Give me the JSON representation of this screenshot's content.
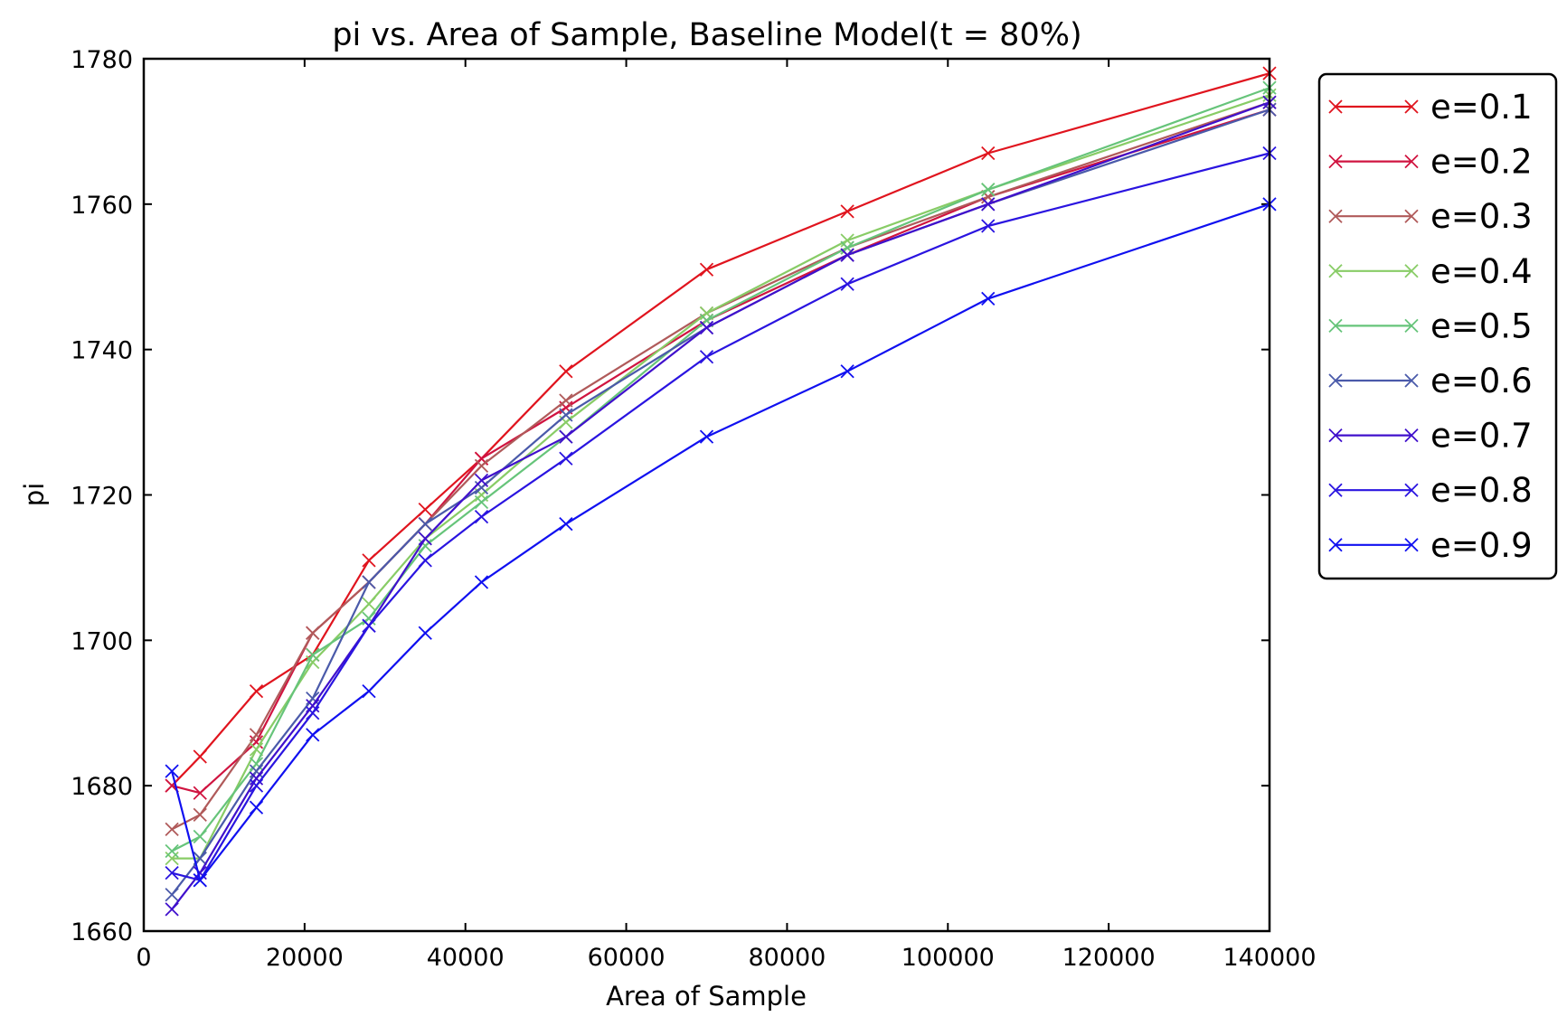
{
  "chart_data": {
    "type": "line",
    "title": "pi vs. Area of Sample, Baseline Model(t = 80%)",
    "xlabel": "Area of Sample",
    "ylabel": "pi",
    "xlim": [
      0,
      140000
    ],
    "ylim": [
      1660,
      1780
    ],
    "xticks": [
      0,
      20000,
      40000,
      60000,
      80000,
      100000,
      120000,
      140000
    ],
    "yticks": [
      1660,
      1680,
      1700,
      1720,
      1740,
      1760,
      1780
    ],
    "grid": false,
    "legend_position": "outside-right-top",
    "marker": "x",
    "x": [
      3500,
      7000,
      14000,
      21000,
      28000,
      35000,
      42000,
      52500,
      70000,
      87500,
      105000,
      140000
    ],
    "series": [
      {
        "name": "e=0.1",
        "color": "#e0141e",
        "values": [
          1680,
          1684,
          1693,
          1698,
          1711,
          1718,
          1725,
          1737,
          1751,
          1759,
          1767,
          1778
        ]
      },
      {
        "name": "e=0.2",
        "color": "#d01440",
        "values": [
          1680,
          1679,
          1686,
          1701,
          1708,
          1716,
          1725,
          1732,
          1744,
          1753,
          1761,
          1773
        ]
      },
      {
        "name": "e=0.3",
        "color": "#b05a5a",
        "values": [
          1674,
          1676,
          1687,
          1701,
          1708,
          1716,
          1724,
          1733,
          1745,
          1754,
          1761,
          1774
        ]
      },
      {
        "name": "e=0.4",
        "color": "#88cc66",
        "values": [
          1670,
          1670,
          1685,
          1697,
          1705,
          1714,
          1720,
          1730,
          1745,
          1755,
          1762,
          1775
        ]
      },
      {
        "name": "e=0.5",
        "color": "#66c47a",
        "values": [
          1671,
          1673,
          1683,
          1698,
          1703,
          1713,
          1719,
          1728,
          1744,
          1754,
          1762,
          1776
        ]
      },
      {
        "name": "e=0.6",
        "color": "#4a5aaa",
        "values": [
          1665,
          1670,
          1682,
          1692,
          1708,
          1716,
          1721,
          1731,
          1743,
          1753,
          1760,
          1773
        ]
      },
      {
        "name": "e=0.7",
        "color": "#4010cc",
        "values": [
          1663,
          1668,
          1681,
          1691,
          1702,
          1714,
          1722,
          1728,
          1743,
          1753,
          1760,
          1774
        ]
      },
      {
        "name": "e=0.8",
        "color": "#2a14e0",
        "values": [
          1668,
          1667,
          1680,
          1690,
          1702,
          1711,
          1717,
          1725,
          1739,
          1749,
          1757,
          1767
        ]
      },
      {
        "name": "e=0.9",
        "color": "#1010f0",
        "values": [
          1682,
          1667,
          1677,
          1687,
          1693,
          1701,
          1708,
          1716,
          1728,
          1737,
          1747,
          1760
        ]
      }
    ]
  }
}
